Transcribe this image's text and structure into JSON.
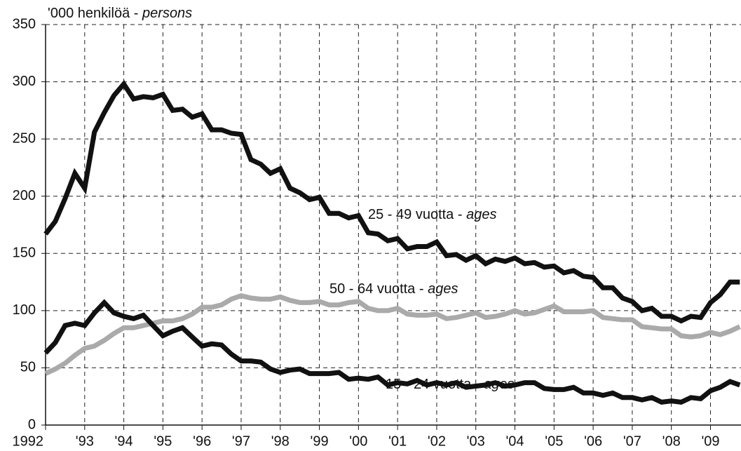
{
  "chart_data": {
    "type": "line",
    "y_label": "'000 henkilöä - persons",
    "x": [
      1992,
      1992.25,
      1992.5,
      1992.75,
      1993,
      1993.25,
      1993.5,
      1993.75,
      1994,
      1994.25,
      1994.5,
      1994.75,
      1995,
      1995.25,
      1995.5,
      1995.75,
      1996,
      1996.25,
      1996.5,
      1996.75,
      1997,
      1997.25,
      1997.5,
      1997.75,
      1998,
      1998.25,
      1998.5,
      1998.75,
      1999,
      1999.25,
      1999.5,
      1999.75,
      2000,
      2000.25,
      2000.5,
      2000.75,
      2001,
      2001.25,
      2001.5,
      2001.75,
      2002,
      2002.25,
      2002.5,
      2002.75,
      2003,
      2003.25,
      2003.5,
      2003.75,
      2004,
      2004.25,
      2004.5,
      2004.75,
      2005,
      2005.25,
      2005.5,
      2005.75,
      2006,
      2006.25,
      2006.5,
      2006.75,
      2007,
      2007.25,
      2007.5,
      2007.75,
      2008,
      2008.25,
      2008.5,
      2008.75,
      2009,
      2009.25,
      2009.5,
      2009.75
    ],
    "series": [
      {
        "name": "25 - 49 vuotta - ages",
        "color": "#111111",
        "values": [
          167,
          178,
          198,
          220,
          207,
          256,
          273,
          288,
          298,
          285,
          287,
          286,
          289,
          275,
          276,
          269,
          272,
          258,
          258,
          255,
          254,
          232,
          228,
          220,
          224,
          207,
          203,
          197,
          199,
          185,
          185,
          181,
          183,
          168,
          167,
          161,
          163,
          154,
          156,
          156,
          160,
          148,
          149,
          144,
          148,
          141,
          145,
          143,
          146,
          141,
          142,
          138,
          139,
          133,
          135,
          130,
          129,
          120,
          120,
          111,
          108,
          100,
          102,
          95,
          95,
          91,
          95,
          94,
          107,
          114,
          125,
          125
        ]
      },
      {
        "name": "50 - 64 vuotta - ages",
        "color": "#aaaaaa",
        "values": [
          45,
          49,
          54,
          61,
          67,
          69,
          74,
          80,
          85,
          85,
          87,
          89,
          91,
          91,
          93,
          97,
          103,
          103,
          105,
          110,
          113,
          111,
          110,
          110,
          112,
          109,
          107,
          107,
          108,
          105,
          105,
          107,
          108,
          102,
          100,
          100,
          102,
          97,
          96,
          96,
          97,
          93,
          94,
          96,
          98,
          94,
          95,
          97,
          100,
          97,
          98,
          101,
          104,
          99,
          99,
          99,
          100,
          94,
          93,
          92,
          92,
          86,
          85,
          84,
          84,
          78,
          77,
          78,
          81,
          79,
          82,
          86
        ]
      },
      {
        "name": "15 - 24 vuotta - ages",
        "color": "#111111",
        "values": [
          63,
          72,
          87,
          89,
          87,
          98,
          107,
          98,
          95,
          93,
          96,
          87,
          78,
          82,
          85,
          77,
          69,
          71,
          70,
          62,
          56,
          56,
          55,
          49,
          46,
          48,
          49,
          45,
          45,
          45,
          46,
          40,
          41,
          40,
          42,
          35,
          37,
          36,
          39,
          35,
          37,
          35,
          37,
          33,
          34,
          35,
          37,
          34,
          35,
          37,
          37,
          32,
          31,
          31,
          33,
          28,
          28,
          26,
          28,
          24,
          24,
          22,
          24,
          20,
          21,
          20,
          24,
          23,
          30,
          33,
          38,
          35
        ]
      }
    ],
    "xlim": [
      1992,
      2009.78
    ],
    "xticks": [
      1992,
      {
        "value": 1993,
        "label": "'93"
      },
      {
        "value": 1994,
        "label": "'94"
      },
      {
        "value": 1995,
        "label": "'95"
      },
      {
        "value": 1996,
        "label": "'96"
      },
      {
        "value": 1997,
        "label": "'97"
      },
      {
        "value": 1998,
        "label": "'98"
      },
      {
        "value": 1999,
        "label": "'99"
      },
      {
        "value": 2000,
        "label": "'00"
      },
      {
        "value": 2001,
        "label": "'01"
      },
      {
        "value": 2002,
        "label": "'02"
      },
      {
        "value": 2003,
        "label": "'03"
      },
      {
        "value": 2004,
        "label": "'04"
      },
      {
        "value": 2005,
        "label": "'05"
      },
      {
        "value": 2006,
        "label": "'06"
      },
      {
        "value": 2007,
        "label": "'07"
      },
      {
        "value": 2008,
        "label": "'08"
      },
      {
        "value": 2009,
        "label": "'09"
      }
    ],
    "ylim": [
      0,
      350
    ],
    "yticks": [
      0,
      50,
      100,
      150,
      200,
      250,
      300,
      350
    ],
    "grid": true
  }
}
